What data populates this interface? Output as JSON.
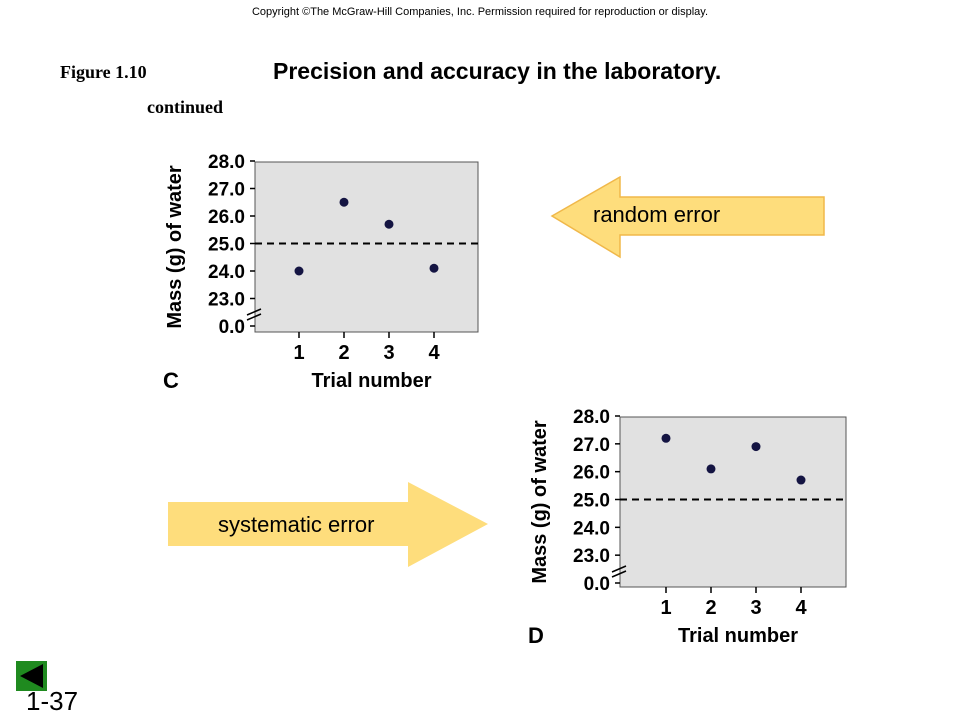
{
  "copyright": "Copyright ©The McGraw-Hill Companies, Inc. Permission required for reproduction or display.",
  "figure_label": "Figure 1.10",
  "continued": "continued",
  "title": "Precision and accuracy in the laboratory.",
  "arrows": {
    "random": "random error",
    "systematic": "systematic error"
  },
  "slide_number": "1-37",
  "colors": {
    "plot_bg": "#e1e1e1",
    "point": "#141442",
    "arrow_fill": "#fedd7c",
    "arrow_stroke": "#f0b84a",
    "nav_green": "#1f8a1f"
  },
  "icons": {
    "back": "back-arrow-icon"
  },
  "chart_data": [
    {
      "type": "scatter",
      "panel_label": "C",
      "xlabel": "Trial number",
      "ylabel": "Mass (g) of water",
      "categories": [
        "1",
        "2",
        "3",
        "4"
      ],
      "x": [
        1,
        2,
        3,
        4
      ],
      "y": [
        24.0,
        26.5,
        25.7,
        24.1
      ],
      "reference_line": 25.0,
      "y_ticks": [
        "28.0",
        "27.0",
        "26.0",
        "25.0",
        "24.0",
        "23.0",
        "0.0"
      ],
      "y_tick_values": [
        28,
        27,
        26,
        25,
        24,
        23,
        22
      ],
      "ylim": [
        22,
        28
      ],
      "axis_break": true,
      "grid": false
    },
    {
      "type": "scatter",
      "panel_label": "D",
      "xlabel": "Trial number",
      "ylabel": "Mass (g) of water",
      "categories": [
        "1",
        "2",
        "3",
        "4"
      ],
      "x": [
        1,
        2,
        3,
        4
      ],
      "y": [
        27.2,
        26.1,
        26.9,
        25.7
      ],
      "reference_line": 25.0,
      "y_ticks": [
        "28.0",
        "27.0",
        "26.0",
        "25.0",
        "24.0",
        "23.0",
        "0.0"
      ],
      "y_tick_values": [
        28,
        27,
        26,
        25,
        24,
        23,
        22
      ],
      "ylim": [
        22,
        28
      ],
      "axis_break": true,
      "grid": false
    }
  ]
}
